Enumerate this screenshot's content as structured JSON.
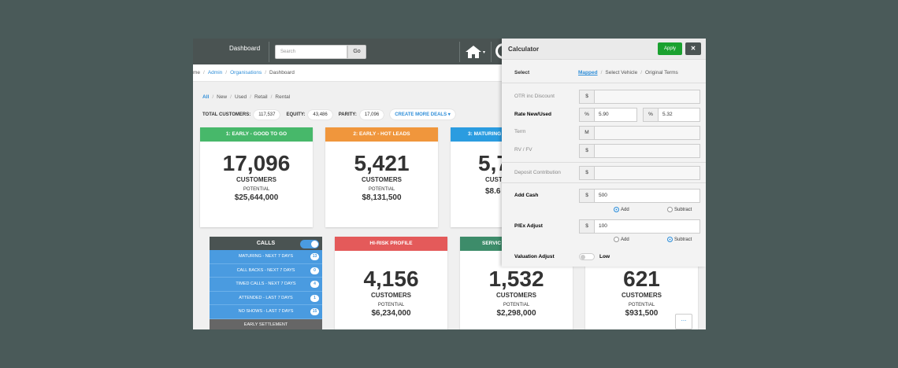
{
  "topbar": {
    "title": "Dashboard",
    "search_placeholder": "Search",
    "go_label": "Go"
  },
  "breadcrumb": {
    "items": [
      "me",
      "Admin",
      "Organisations",
      "Dashboard"
    ]
  },
  "filters": {
    "items": [
      "All",
      "New",
      "Used",
      "Retail",
      "Rental"
    ]
  },
  "totals": {
    "customers_label": "TOTAL CUSTOMERS:",
    "customers_value": "117,537",
    "equity_label": "EQUITY:",
    "equity_value": "43,486",
    "parity_label": "PARITY:",
    "parity_value": "17,096",
    "create_label": "CREATE MORE DEALS ▾"
  },
  "cards": [
    {
      "header": "1: EARLY - GOOD TO GO",
      "color": "#47b86a",
      "count": "17,096",
      "unit": "CUSTOMERS",
      "potential_label": "POTENTIAL",
      "amount": "$25,644,000"
    },
    {
      "header": "2: EARLY - HOT LEADS",
      "color": "#f0963c",
      "count": "5,421",
      "unit": "CUSTOMERS",
      "potential_label": "POTENTIAL",
      "amount": "$8,131,500"
    },
    {
      "header": "3: MATURING",
      "color": "#2b9ce0",
      "count": "5,7",
      "unit": "CUST",
      "potential_label": "",
      "amount": "$8.6"
    },
    {
      "header": "HI-RISK PROFILE",
      "color": "#e45a5a",
      "count": "4,156",
      "unit": "CUSTOMERS",
      "potential_label": "POTENTIAL",
      "amount": "$6,234,000"
    },
    {
      "header": "SERVIC",
      "color": "#3d8c6a",
      "count": "1,532",
      "unit": "CUSTOMERS",
      "potential_label": "POTENTIAL",
      "amount": "$2,298,000"
    },
    {
      "header": "",
      "color": "#f0f0f0",
      "count": "621",
      "unit": "CUSTOMERS",
      "potential_label": "POTENTIAL",
      "amount": "$931,500"
    }
  ],
  "calls": {
    "title": "CALLS",
    "rows": [
      {
        "label": "MATURING - NEXT 7 DAYS",
        "count": "13"
      },
      {
        "label": "CALL BACKS - NEXT 7 DAYS",
        "count": "0"
      },
      {
        "label": "TIMED CALLS - NEXT 7 DAYS",
        "count": "4"
      },
      {
        "label": "ATTENDED - LAST 7 DAYS",
        "count": "1"
      },
      {
        "label": "NO SHOWS - LAST 7 DAYS",
        "count": "15"
      }
    ],
    "footer": "EARLY SETTLEMENT"
  },
  "calculator": {
    "title": "Calculator",
    "apply_label": "Apply",
    "close_label": "✕",
    "select_label": "Select",
    "select_options": [
      "Mapped",
      "Select Vehicle",
      "Original Terms"
    ],
    "otr_label": "OTR inc Discount",
    "otr_addon": "$",
    "rate_label": "Rate New/Used",
    "rate_addon": "%",
    "rate_new": "5.90",
    "rate_used": "5.32",
    "term_label": "Term",
    "term_addon": "M",
    "rv_label": "RV / FV",
    "rv_addon": "$",
    "deposit_label": "Deposit Contribution",
    "deposit_addon": "$",
    "addcash_label": "Add Cash",
    "addcash_addon": "$",
    "addcash_value": "500",
    "addcash_radio_add": "Add",
    "addcash_radio_sub": "Subtract",
    "pex_label": "P/Ex Adjust",
    "pex_addon": "$",
    "pex_value": "100",
    "pex_radio_add": "Add",
    "pex_radio_sub": "Subtract",
    "valuation_label": "Valuation Adjust",
    "valuation_value": "Low"
  },
  "more_button": "..."
}
